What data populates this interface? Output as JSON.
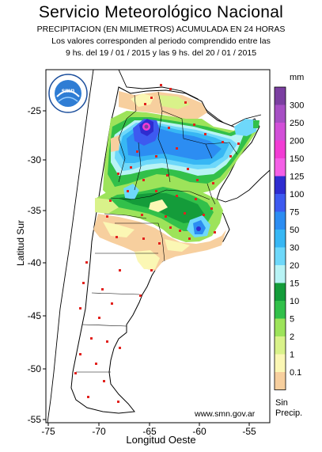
{
  "header": {
    "title": "Servicio Meteorológico Nacional",
    "subtitle": "PRECIPITACION (EN MILIMETROS) ACUMULADA EN 24 HORAS",
    "period_line1": "Los valores corresponden al periodo comprendido entre las",
    "period_line2": "9 hs. del 19 / 01 / 2015  y las 9 hs. del 20 / 01 / 2015"
  },
  "axes": {
    "ylabel": "Latitud Sur",
    "xlabel": "Longitud Oeste",
    "y_ticks": [
      "-25",
      "-30",
      "-35",
      "-40",
      "-45",
      "-50",
      "-55"
    ],
    "x_ticks": [
      "-75",
      "-70",
      "-65",
      "-60",
      "-55"
    ]
  },
  "legend": {
    "unit": "mm",
    "no_precip_label_1": "Sin",
    "no_precip_label_2": "Precip.",
    "items": [
      {
        "label": "300",
        "color": "#7b3fa1"
      },
      {
        "label": "250",
        "color": "#a64fc4"
      },
      {
        "label": "200",
        "color": "#d24fd8"
      },
      {
        "label": "150",
        "color": "#f23cd4"
      },
      {
        "label": "125",
        "color": "#f45fe6"
      },
      {
        "label": "100",
        "color": "#2e2cd0"
      },
      {
        "label": "75",
        "color": "#3d5af0"
      },
      {
        "label": "50",
        "color": "#2c8df2"
      },
      {
        "label": "30",
        "color": "#37b7f4"
      },
      {
        "label": "20",
        "color": "#6ed8fa"
      },
      {
        "label": "15",
        "color": "#b8f3f5"
      },
      {
        "label": "10",
        "color": "#149c3a"
      },
      {
        "label": "5",
        "color": "#32c04a"
      },
      {
        "label": "2",
        "color": "#9de35a"
      },
      {
        "label": "1",
        "color": "#d9f28a"
      },
      {
        "label": "0.1",
        "color": "#fbf7b4"
      },
      {
        "label": "",
        "color": "#f7cf9e"
      }
    ]
  },
  "logo": {
    "text_top": "SERVICIO METEOROLOGICO NACIONAL",
    "text_bottom": "ARGENTINA",
    "center": "smn"
  },
  "footer": {
    "url": "www.smn.gov.ar"
  }
}
